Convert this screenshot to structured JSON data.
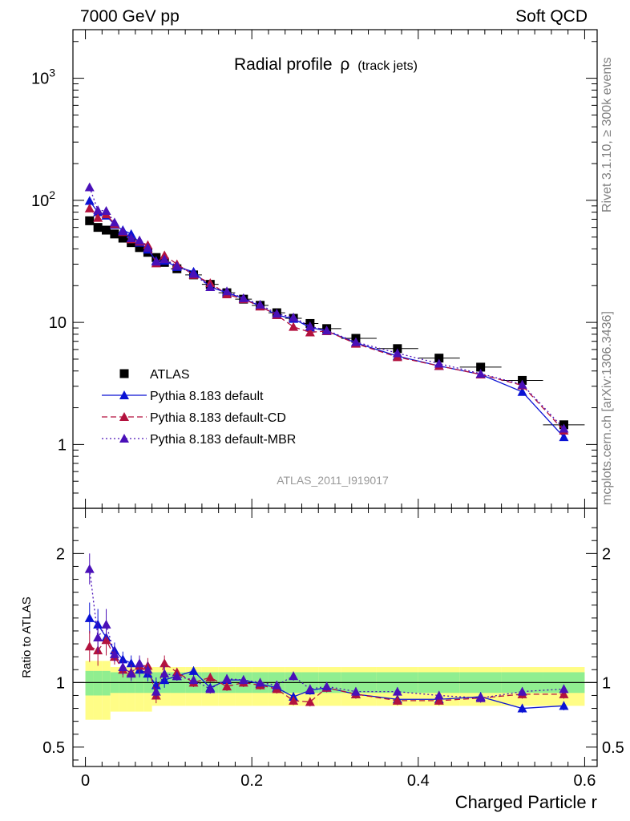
{
  "header": {
    "left_label": "7000 GeV pp",
    "right_label": "Soft QCD"
  },
  "side": {
    "rivet_label": "Rivet 3.1.10, ≥ 300k events",
    "mcplots_label": "mcplots.cern.ch [arXiv:1306.3436]"
  },
  "chart_data": [
    {
      "type": "scatter",
      "title_main": "Radial profile",
      "title_symbol": "ρ",
      "title_sub": "(track jets)",
      "watermark": "ATLAS_2011_I919017",
      "xlabel": "Charged Particle r",
      "ylabel": "",
      "yscale": "log",
      "xlim": [
        -0.015,
        0.615
      ],
      "ylim": [
        0.3,
        2500
      ],
      "x_ticks": [
        0,
        0.2,
        0.4,
        0.6
      ],
      "y_ticks": [
        {
          "value": 1,
          "label": "1"
        },
        {
          "value": 10,
          "label": "10"
        },
        {
          "value": 100,
          "label": "10",
          "exp": "2"
        },
        {
          "value": 1000,
          "label": "10",
          "exp": "3"
        }
      ],
      "x": [
        0.005,
        0.015,
        0.025,
        0.035,
        0.045,
        0.055,
        0.065,
        0.075,
        0.085,
        0.095,
        0.11,
        0.13,
        0.15,
        0.17,
        0.19,
        0.21,
        0.23,
        0.25,
        0.27,
        0.29,
        0.325,
        0.375,
        0.425,
        0.475,
        0.525,
        0.575
      ],
      "series": [
        {
          "name": "ATLAS",
          "color": "#000000",
          "marker": "square",
          "line": "none",
          "values": [
            68,
            60,
            57,
            53,
            49,
            45,
            41,
            37.5,
            34,
            31,
            27.5,
            24.5,
            20.5,
            17.5,
            15.5,
            13.8,
            12,
            10.8,
            9.8,
            8.9,
            7.4,
            6.1,
            5.1,
            4.3,
            3.35,
            1.45
          ]
        },
        {
          "name": "Pythia 8.183 default",
          "color": "#0a12d4",
          "marker": "triangle",
          "line": "solid",
          "values": [
            99,
            80,
            75,
            63,
            57,
            53,
            45,
            39.5,
            32,
            32,
            28.5,
            26,
            19.5,
            17.5,
            15.7,
            13.6,
            11.5,
            10.7,
            9.1,
            8.5,
            6.8,
            5.3,
            4.4,
            3.75,
            2.7,
            1.15
          ]
        },
        {
          "name": "Pythia 8.183 default-CD",
          "color": "#b3123e",
          "marker": "triangle",
          "line": "dashed",
          "values": [
            86,
            72,
            77,
            64,
            55,
            48,
            46,
            43,
            30.5,
            35.5,
            30,
            24.5,
            21,
            17,
            15.5,
            13.5,
            11.5,
            9.2,
            8.3,
            8.5,
            6.7,
            5.2,
            4.4,
            3.75,
            3.05,
            1.3
          ]
        },
        {
          "name": "Pythia 8.183 default-MBR",
          "color": "#4a10b8",
          "marker": "triangle",
          "line": "dotted",
          "values": [
            128,
            83,
            82,
            66,
            56,
            49,
            47,
            41,
            31.5,
            33,
            29,
            25,
            19.5,
            18,
            15.8,
            14,
            11.8,
            11,
            9.3,
            8.6,
            6.9,
            5.6,
            4.6,
            3.8,
            3.1,
            1.35
          ]
        }
      ]
    },
    {
      "type": "scatter",
      "title": "",
      "ylabel": "Ratio to ATLAS",
      "xlabel": "Charged Particle r",
      "xlim": [
        -0.015,
        0.615
      ],
      "ylim": [
        0.35,
        2.35
      ],
      "x_ticks": [
        0,
        0.2,
        0.4,
        0.6
      ],
      "y_ticks": [
        {
          "value": 0.5,
          "label": "0.5"
        },
        {
          "value": 1,
          "label": "1"
        },
        {
          "value": 2,
          "label": "2"
        }
      ],
      "reference_line": 1,
      "band_inner": {
        "color": "#90ee90",
        "lo": 0.9,
        "hi": 1.1
      },
      "band_outer": {
        "color": "#fffd86",
        "lo": 0.82,
        "hi": 1.12
      },
      "x": [
        0.005,
        0.015,
        0.025,
        0.035,
        0.045,
        0.055,
        0.065,
        0.075,
        0.085,
        0.095,
        0.11,
        0.13,
        0.15,
        0.17,
        0.19,
        0.21,
        0.23,
        0.25,
        0.27,
        0.29,
        0.325,
        0.375,
        0.425,
        0.475,
        0.525,
        0.575
      ],
      "series": [
        {
          "name": "Pythia 8.183 default",
          "color": "#0a12d4",
          "values": [
            1.5,
            1.45,
            1.35,
            1.25,
            1.18,
            1.15,
            1.1,
            1.07,
            0.98,
            1.02,
            1.05,
            1.09,
            0.96,
            1.02,
            1.02,
            0.99,
            0.96,
            0.89,
            0.94,
            0.96,
            0.91,
            0.87,
            0.87,
            0.89,
            0.8,
            0.82
          ]
        },
        {
          "name": "Pythia 8.183 default-CD",
          "color": "#b3123e",
          "values": [
            1.28,
            1.25,
            1.33,
            1.2,
            1.1,
            1.08,
            1.13,
            1.13,
            0.9,
            1.15,
            1.08,
            1.0,
            1.04,
            0.97,
            1.0,
            0.98,
            0.95,
            0.86,
            0.85,
            0.96,
            0.91,
            0.86,
            0.86,
            0.88,
            0.91,
            0.91
          ]
        },
        {
          "name": "Pythia 8.183 default-MBR",
          "color": "#4a10b8",
          "values": [
            1.88,
            1.35,
            1.45,
            1.22,
            1.12,
            1.07,
            1.15,
            1.1,
            0.93,
            1.07,
            1.05,
            1.02,
            0.95,
            1.03,
            1.02,
            1.0,
            0.98,
            1.05,
            0.95,
            0.97,
            0.93,
            0.93,
            0.9,
            0.88,
            0.93,
            0.95
          ]
        }
      ]
    }
  ]
}
